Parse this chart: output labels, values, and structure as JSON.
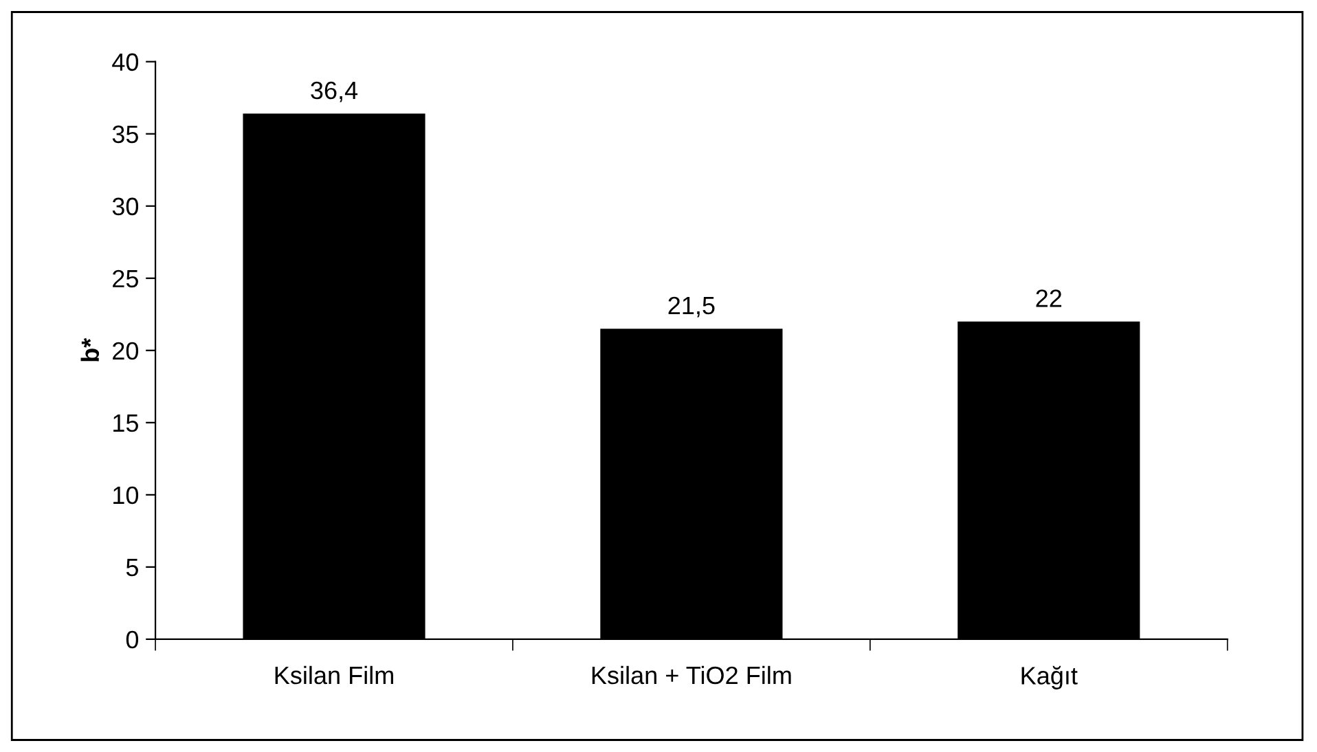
{
  "chart_data": {
    "type": "bar",
    "ylabel": "b*",
    "categories": [
      "Ksilan Film",
      "Ksilan + TiO2 Film",
      "Kağıt"
    ],
    "values": [
      36.4,
      21.5,
      22
    ],
    "value_labels": [
      "36,4",
      "21,5",
      "22"
    ],
    "color": "#000000",
    "ylim": [
      0,
      40
    ],
    "yticks": [
      0,
      5,
      10,
      15,
      20,
      25,
      30,
      35,
      40
    ],
    "grid": false,
    "legend": false
  }
}
